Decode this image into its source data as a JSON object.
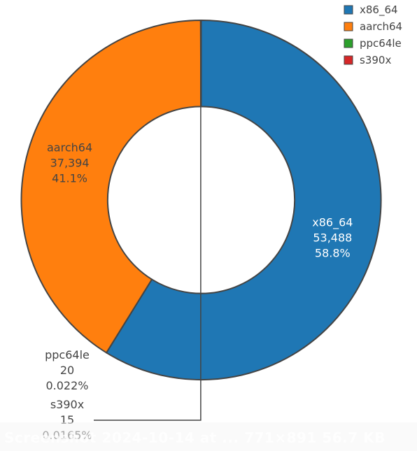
{
  "chart_data": {
    "type": "pie",
    "hole": 0.52,
    "slices": [
      {
        "label": "x86_64",
        "value": 53488,
        "value_text": "53,488",
        "percent_text": "58.8%",
        "color": "#1f77b4"
      },
      {
        "label": "aarch64",
        "value": 37394,
        "value_text": "37,394",
        "percent_text": "41.1%",
        "color": "#ff7f0e"
      },
      {
        "label": "ppc64le",
        "value": 20,
        "value_text": "20",
        "percent_text": "0.022%",
        "color": "#2ca02c"
      },
      {
        "label": "s390x",
        "value": 15,
        "value_text": "15",
        "percent_text": "0.0165%",
        "color": "#d62728"
      }
    ],
    "legend": {
      "position": "top-right",
      "items": [
        "x86_64",
        "aarch64",
        "ppc64le",
        "s390x"
      ]
    },
    "title": ""
  },
  "footer": {
    "text": "Screenshot 2024-10-14 at ...  771×891 56.7 KB"
  }
}
